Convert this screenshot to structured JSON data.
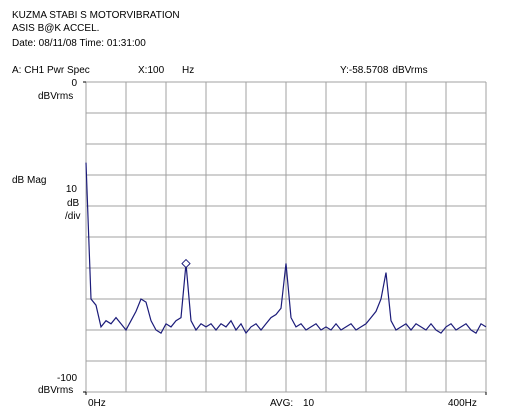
{
  "header": {
    "line1": "KUZMA STABI S  MOTORVIBRATION",
    "line2": "ASIS  B@K ACCEL.",
    "line3": "Date: 08/11/08  Time: 01:31:00",
    "trace": "A:  CH1 Pwr Spec"
  },
  "chart_data": {
    "type": "line",
    "marker": {
      "x_prefix": "X:",
      "x": 100,
      "x_unit": "Hz",
      "y_prefix": "Y:",
      "y": -58.5708,
      "y_unit": "dBVrms"
    },
    "y_label": "dB Mag",
    "scale_value": "10",
    "scale_unit": "dB",
    "scale_per": "/div",
    "ylim": [
      -100,
      0
    ],
    "yticks": [
      0,
      -100
    ],
    "ytick_unit": "dBVrms",
    "xlim": [
      0,
      400
    ],
    "xticks": [
      {
        "value": 0,
        "label": "0Hz"
      },
      {
        "value": 400,
        "label": "400Hz"
      }
    ],
    "avg_label": "AVG:",
    "avg_value": "10",
    "grid": {
      "x_divisions": 10,
      "y_divisions": 10
    },
    "series": [
      {
        "color": "#1c1c7a",
        "x": [
          0,
          5,
          10,
          15,
          20,
          25,
          30,
          35,
          40,
          45,
          50,
          55,
          60,
          65,
          70,
          75,
          80,
          85,
          90,
          95,
          100,
          105,
          110,
          115,
          120,
          125,
          130,
          135,
          140,
          145,
          150,
          155,
          160,
          165,
          170,
          175,
          180,
          185,
          190,
          195,
          200,
          205,
          210,
          215,
          220,
          225,
          230,
          235,
          240,
          245,
          250,
          255,
          260,
          265,
          270,
          275,
          280,
          285,
          290,
          295,
          300,
          305,
          310,
          315,
          320,
          325,
          330,
          335,
          340,
          345,
          350,
          355,
          360,
          365,
          370,
          375,
          380,
          385,
          390,
          395,
          400
        ],
        "values": [
          -26,
          -70,
          -72,
          -79,
          -77,
          -78,
          -76,
          -78,
          -80,
          -77,
          -74,
          -70,
          -71,
          -77,
          -80,
          -81,
          -78,
          -79,
          -77,
          -76,
          -58.6,
          -77,
          -80,
          -78,
          -79,
          -78,
          -80,
          -78,
          -79,
          -77,
          -80,
          -78,
          -81,
          -79,
          -78,
          -80,
          -78,
          -76,
          -75,
          -73,
          -58.5,
          -76,
          -79,
          -78,
          -80,
          -79,
          -78,
          -80,
          -79,
          -80,
          -78,
          -80,
          -79,
          -78,
          -80,
          -79,
          -78,
          -76,
          -74,
          -70,
          -61.5,
          -77,
          -80,
          -79,
          -78,
          -80,
          -78,
          -79,
          -80,
          -78,
          -80,
          -81,
          -79,
          -78,
          -80,
          -79,
          -78,
          -80,
          -81,
          -78,
          -79
        ]
      }
    ]
  }
}
